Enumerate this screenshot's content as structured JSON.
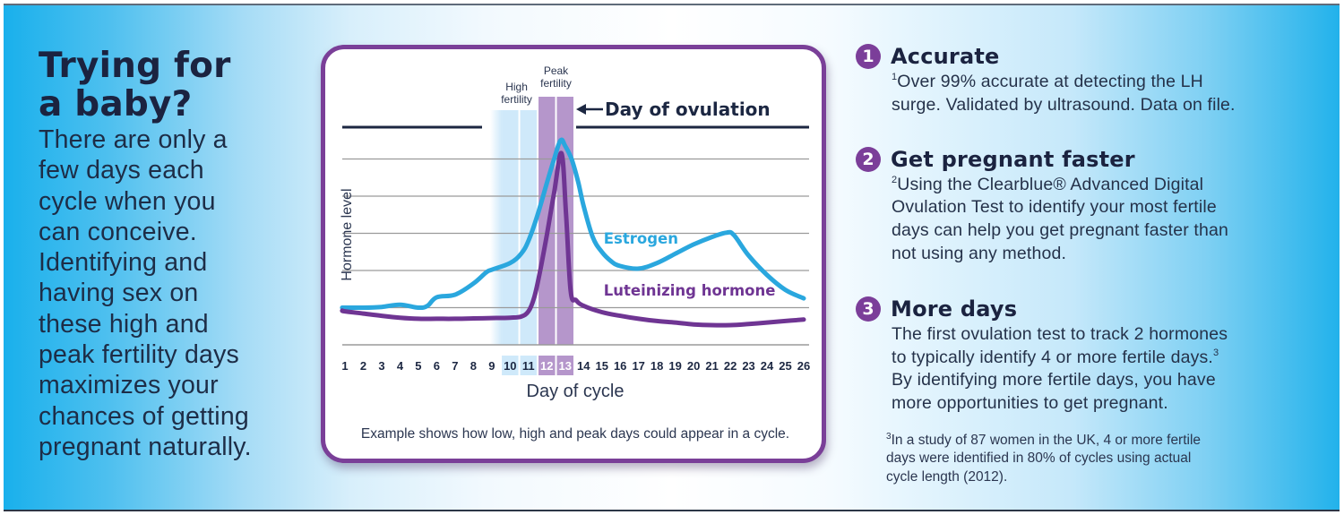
{
  "left": {
    "title_line1": "Trying for",
    "title_line2": "a baby?",
    "body_lines": [
      "There are only a",
      "few days each",
      "cycle when you",
      "can conceive.",
      "Identifying and",
      "having sex on",
      "these high and",
      "peak fertility days",
      "maximizes your",
      "chances of getting",
      "pregnant naturally."
    ]
  },
  "colors": {
    "estrogen": "#2aa7de",
    "lh": "#6f3593",
    "frame": "#7a3f98",
    "high_band": "#cfe9fa",
    "peak_band": "#b596cb",
    "navy": "#1c2742",
    "grid": "#9a9a9a"
  },
  "chart_data": {
    "type": "line",
    "title": "",
    "xlabel": "Day of cycle",
    "ylabel": "Hormone level",
    "x": [
      1,
      2,
      3,
      4,
      5,
      6,
      7,
      8,
      9,
      10,
      11,
      12,
      13,
      14,
      15,
      16,
      17,
      18,
      19,
      20,
      21,
      22,
      23,
      24,
      25,
      26
    ],
    "xlim": [
      1,
      26
    ],
    "ylim": [
      0,
      6
    ],
    "grid": true,
    "y_gridlines": [
      1,
      2,
      3,
      4,
      5
    ],
    "series": [
      {
        "name": "Estrogen",
        "color_key": "estrogen",
        "points": [
          [
            0.85,
            1.0
          ],
          [
            1,
            1.0
          ],
          [
            2,
            1.0
          ],
          [
            3,
            1.02
          ],
          [
            4,
            1.08
          ],
          [
            5,
            1.0
          ],
          [
            5.5,
            1.05
          ],
          [
            6,
            1.28
          ],
          [
            7,
            1.35
          ],
          [
            8,
            1.65
          ],
          [
            8.7,
            1.95
          ],
          [
            9,
            2.02
          ],
          [
            10,
            2.2
          ],
          [
            10.6,
            2.45
          ],
          [
            11,
            2.8
          ],
          [
            11.5,
            3.5
          ],
          [
            12,
            4.35
          ],
          [
            12.4,
            5.0
          ],
          [
            12.75,
            5.5
          ],
          [
            13,
            5.35
          ],
          [
            13.35,
            5.0
          ],
          [
            13.7,
            4.4
          ],
          [
            14,
            3.75
          ],
          [
            14.5,
            2.9
          ],
          [
            15,
            2.5
          ],
          [
            15.5,
            2.25
          ],
          [
            16,
            2.12
          ],
          [
            17,
            2.05
          ],
          [
            18,
            2.2
          ],
          [
            19,
            2.45
          ],
          [
            20,
            2.7
          ],
          [
            21,
            2.9
          ],
          [
            21.8,
            3.02
          ],
          [
            22.2,
            2.95
          ],
          [
            23,
            2.4
          ],
          [
            24,
            1.88
          ],
          [
            25,
            1.48
          ],
          [
            26,
            1.25
          ]
        ]
      },
      {
        "name": "Luteinizing hormone",
        "color_key": "lh",
        "points": [
          [
            0.85,
            0.92
          ],
          [
            1,
            0.9
          ],
          [
            2,
            0.84
          ],
          [
            3,
            0.78
          ],
          [
            4,
            0.73
          ],
          [
            5,
            0.7
          ],
          [
            6,
            0.7
          ],
          [
            7,
            0.7
          ],
          [
            8,
            0.71
          ],
          [
            9,
            0.72
          ],
          [
            10,
            0.73
          ],
          [
            10.6,
            0.76
          ],
          [
            11,
            0.9
          ],
          [
            11.3,
            1.25
          ],
          [
            11.6,
            1.9
          ],
          [
            12,
            2.95
          ],
          [
            12.4,
            4.1
          ],
          [
            12.8,
            5.15
          ],
          [
            13.05,
            3.5
          ],
          [
            13.3,
            1.45
          ],
          [
            13.6,
            1.2
          ],
          [
            14,
            1.05
          ],
          [
            15,
            0.88
          ],
          [
            16,
            0.78
          ],
          [
            17,
            0.7
          ],
          [
            18,
            0.64
          ],
          [
            19,
            0.6
          ],
          [
            20,
            0.55
          ],
          [
            21,
            0.53
          ],
          [
            22,
            0.53
          ],
          [
            23,
            0.56
          ],
          [
            24,
            0.6
          ],
          [
            25,
            0.64
          ],
          [
            26,
            0.68
          ]
        ]
      }
    ],
    "series_labels": [
      {
        "text": "Estrogen",
        "series": "Estrogen",
        "at_day": 15.1,
        "at_level": 2.72
      },
      {
        "text": "Luteinizing hormone",
        "series": "Luteinizing hormone",
        "at_day": 15.1,
        "at_level": 1.32
      }
    ],
    "bands": [
      {
        "label": "High fertility",
        "days": [
          10,
          11
        ],
        "kind": "high"
      },
      {
        "label": "Peak fertility",
        "days": [
          12,
          13
        ],
        "kind": "peak"
      }
    ],
    "annotations": [
      {
        "text": "Day of ovulation",
        "day": 13,
        "arrow": "left"
      }
    ],
    "caption": "Example shows how low, high and peak days could appear in a cycle."
  },
  "right": {
    "points": [
      {
        "number": "1",
        "title": "Accurate",
        "sup": "1",
        "lines": [
          "Over 99% accurate at detecting the LH",
          "surge. Validated by ultrasound. Data on file."
        ]
      },
      {
        "number": "2",
        "title": "Get pregnant faster",
        "sup": "2",
        "lines": [
          "Using the Clearblue® Advanced Digital",
          "Ovulation Test to identify your most fertile",
          "days can help you get pregnant faster than",
          "not using any method."
        ]
      },
      {
        "number": "3",
        "title": "More days",
        "lines": [
          "The first ovulation test to track 2 hormones",
          "to typically identify 4 or more fertile days.",
          "By identifying more fertile days, you have",
          "more opportunities to get pregnant."
        ],
        "line2_sup": "3"
      }
    ],
    "footnote": {
      "sup": "3",
      "lines": [
        "In a study of 87 women in the UK, 4 or more fertile",
        "days were identified in 80% of cycles using actual",
        "cycle length (2012)."
      ]
    }
  }
}
